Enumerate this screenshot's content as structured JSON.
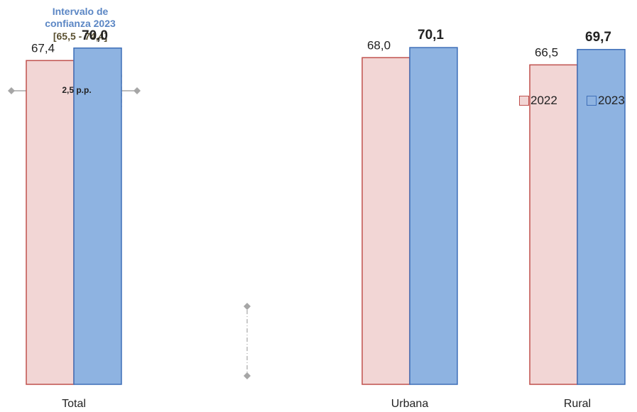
{
  "ci": {
    "title_line1": "Intervalo de",
    "title_line2": "confianza 2023",
    "range": "[65,5 - 74,4]",
    "pp": "2,5 p.p."
  },
  "legend": {
    "s2022": "2022",
    "s2023": "2023"
  },
  "colors": {
    "fill2022": "#f2d6d5",
    "stroke2022": "#c0504d",
    "fill2023": "#8eb3e1",
    "stroke2023": "#3f6fb8"
  },
  "chart_data": {
    "type": "bar",
    "categories": [
      "Total",
      "Urbana",
      "Rural"
    ],
    "series": [
      {
        "name": "2022",
        "values": [
          67.4,
          68.0,
          66.5
        ],
        "labels": [
          "67,4",
          "68,0",
          "66,5"
        ]
      },
      {
        "name": "2023",
        "values": [
          70.0,
          70.1,
          69.7
        ],
        "labels": [
          "70,0",
          "70,1",
          "69,7"
        ]
      }
    ],
    "ylim": [
      0,
      80
    ],
    "xlabel": "",
    "ylabel": "",
    "grid": false,
    "legend_position": "top-right"
  }
}
